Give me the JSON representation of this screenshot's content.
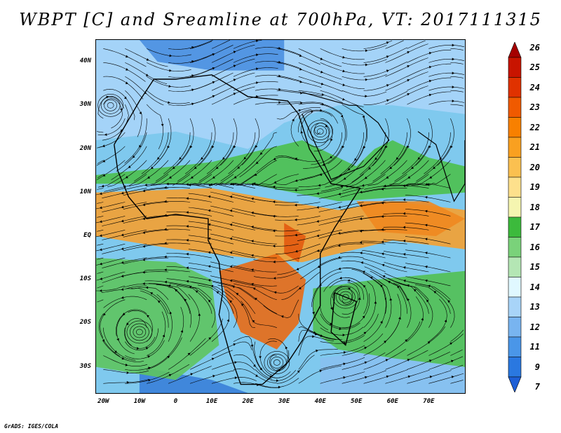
{
  "title": "WBPT [C] and Sreamline at 700hPa, VT: 2017111315",
  "credit": "GrADS: IGES/COLA",
  "lat_labels": [
    {
      "text": "40N",
      "lat": 40
    },
    {
      "text": "30N",
      "lat": 30
    },
    {
      "text": "20N",
      "lat": 20
    },
    {
      "text": "10N",
      "lat": 10
    },
    {
      "text": "EQ",
      "lat": 0
    },
    {
      "text": "10S",
      "lat": -10
    },
    {
      "text": "20S",
      "lat": -20
    },
    {
      "text": "30S",
      "lat": -30
    }
  ],
  "lon_labels": [
    {
      "text": "20W",
      "lon": -20
    },
    {
      "text": "10W",
      "lon": -10
    },
    {
      "text": "0",
      "lon": 0
    },
    {
      "text": "10E",
      "lon": 10
    },
    {
      "text": "20E",
      "lon": 20
    },
    {
      "text": "30E",
      "lon": 30
    },
    {
      "text": "40E",
      "lon": 40
    },
    {
      "text": "50E",
      "lon": 50
    },
    {
      "text": "60E",
      "lon": 60
    },
    {
      "text": "70E",
      "lon": 70
    }
  ],
  "map_extent": {
    "lon_min": -22,
    "lon_max": 80,
    "lat_min": -36,
    "lat_max": 45
  },
  "colorbar": {
    "levels": [
      "26",
      "25",
      "24",
      "23",
      "22",
      "21",
      "20",
      "19",
      "18",
      "17",
      "16",
      "15",
      "14",
      "13",
      "12",
      "11",
      "9",
      "7"
    ],
    "colors": [
      "#a50000",
      "#c81400",
      "#e03200",
      "#f05a00",
      "#f88000",
      "#f9a020",
      "#fbc050",
      "#fde08c",
      "#f5f5b0",
      "#3cba3c",
      "#7ad27a",
      "#b4e6b4",
      "#e0f8ff",
      "#a8d4f8",
      "#78b4f0",
      "#4a96e8",
      "#2a78e0",
      "#1e5fd6"
    ]
  },
  "fields": {
    "background": "#7fc9ee",
    "warm_regions": [
      {
        "name": "equatorial-band",
        "color": "#f5a030",
        "points": [
          [
            -22,
            10
          ],
          [
            10,
            11
          ],
          [
            30,
            8
          ],
          [
            45,
            6
          ],
          [
            60,
            8
          ],
          [
            80,
            6
          ],
          [
            80,
            -3
          ],
          [
            60,
            -1
          ],
          [
            45,
            -4
          ],
          [
            35,
            -6
          ],
          [
            20,
            -5
          ],
          [
            0,
            -3
          ],
          [
            -22,
            0
          ]
        ]
      },
      {
        "name": "southern-africa-hot",
        "color": "#e96a14",
        "points": [
          [
            12,
            -8
          ],
          [
            28,
            -4
          ],
          [
            36,
            -10
          ],
          [
            34,
            -20
          ],
          [
            28,
            -26
          ],
          [
            18,
            -22
          ],
          [
            14,
            -14
          ]
        ]
      },
      {
        "name": "east-africa-hot",
        "color": "#e25a10",
        "points": [
          [
            30,
            3
          ],
          [
            36,
            0
          ],
          [
            34,
            -6
          ],
          [
            30,
            -4
          ]
        ]
      },
      {
        "name": "arabian-sea-warm",
        "color": "#f08820",
        "points": [
          [
            50,
            8
          ],
          [
            70,
            8
          ],
          [
            80,
            4
          ],
          [
            72,
            0
          ],
          [
            56,
            1
          ]
        ]
      },
      {
        "name": "sahel-green",
        "color": "#4cc04c",
        "points": [
          [
            -22,
            14
          ],
          [
            10,
            17
          ],
          [
            35,
            22
          ],
          [
            50,
            16
          ],
          [
            55,
            20
          ],
          [
            60,
            22
          ],
          [
            70,
            18
          ],
          [
            80,
            16
          ],
          [
            80,
            10
          ],
          [
            45,
            8
          ],
          [
            20,
            12
          ],
          [
            -22,
            12
          ]
        ]
      },
      {
        "name": "south-atlantic-green",
        "color": "#5ec45e",
        "points": [
          [
            -22,
            -5
          ],
          [
            0,
            -6
          ],
          [
            10,
            -10
          ],
          [
            12,
            -25
          ],
          [
            0,
            -33
          ],
          [
            -22,
            -30
          ]
        ]
      },
      {
        "name": "indian-ocean-green",
        "color": "#52c052",
        "points": [
          [
            38,
            -12
          ],
          [
            55,
            -10
          ],
          [
            80,
            -8
          ],
          [
            80,
            -30
          ],
          [
            60,
            -28
          ],
          [
            45,
            -26
          ],
          [
            38,
            -22
          ]
        ]
      },
      {
        "name": "north-blue",
        "color": "#4a8fe0",
        "points": [
          [
            -10,
            45
          ],
          [
            30,
            45
          ],
          [
            30,
            38
          ],
          [
            10,
            38
          ],
          [
            -5,
            40
          ]
        ]
      },
      {
        "name": "mediterranean-blue",
        "color": "#a8d4f8",
        "points": [
          [
            -22,
            22
          ],
          [
            0,
            24
          ],
          [
            20,
            20
          ],
          [
            30,
            26
          ],
          [
            45,
            30
          ],
          [
            60,
            30
          ],
          [
            80,
            28
          ],
          [
            80,
            45
          ],
          [
            -22,
            45
          ]
        ]
      },
      {
        "name": "south-blue",
        "color": "#3a7fd8",
        "points": [
          [
            -10,
            -30
          ],
          [
            10,
            -33
          ],
          [
            20,
            -36
          ],
          [
            -10,
            -36
          ]
        ]
      },
      {
        "name": "southwest-indian-blue",
        "color": "#88c0f0",
        "points": [
          [
            40,
            -28
          ],
          [
            60,
            -26
          ],
          [
            80,
            -30
          ],
          [
            80,
            -36
          ],
          [
            40,
            -36
          ]
        ]
      }
    ],
    "cyclones": [
      {
        "name": "south-atlantic-eddy",
        "lon": -10,
        "lat": -22,
        "r": 7
      },
      {
        "name": "north-atlantic-eddy",
        "lon": -18,
        "lat": 30,
        "r": 6
      },
      {
        "name": "indian-eddy",
        "lon": 47,
        "lat": -14,
        "r": 8
      },
      {
        "name": "red-sea-eddy",
        "lon": 40,
        "lat": 24,
        "r": 6
      },
      {
        "name": "mozambique-eddy",
        "lon": 28,
        "lat": -29,
        "r": 5
      }
    ]
  }
}
